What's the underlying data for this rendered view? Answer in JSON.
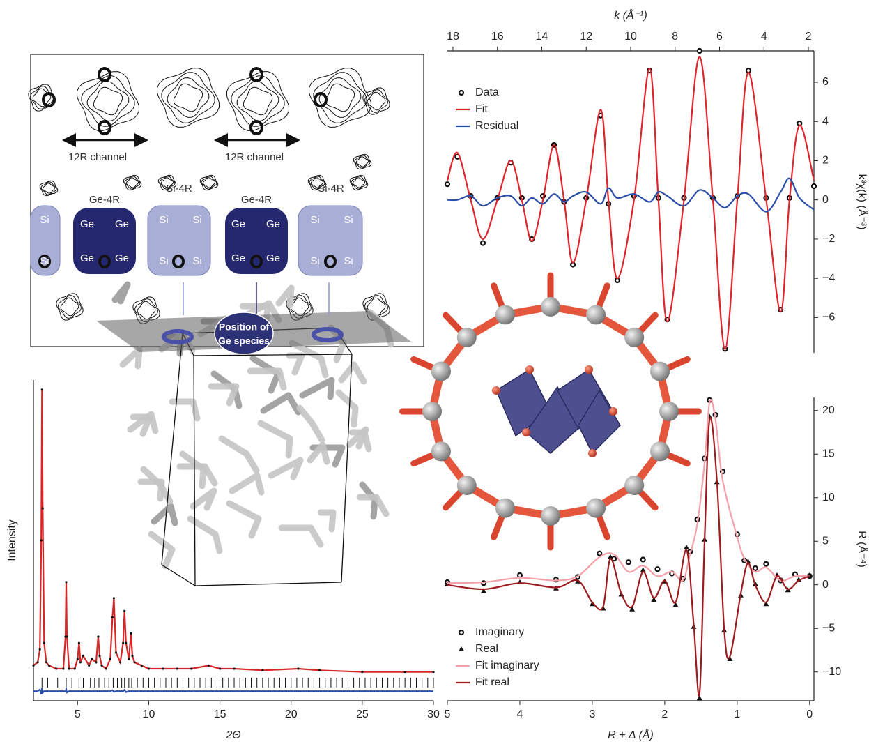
{
  "chart_data": [
    {
      "type": "line",
      "xlabel": "2Θ",
      "ylabel": "Intensity",
      "xaxis": "bottom",
      "yaxis": "left",
      "xlim": [
        1.9,
        30
      ],
      "xticks": [
        5,
        10,
        15,
        20,
        25,
        30
      ],
      "ylim": [
        0,
        100
      ],
      "x": [
        1.9,
        2.2,
        2.35,
        2.45,
        2.5,
        2.55,
        2.65,
        2.8,
        3.0,
        3.5,
        4.0,
        4.15,
        4.2,
        4.25,
        4.4,
        4.8,
        5.0,
        5.1,
        5.2,
        5.4,
        5.8,
        6.0,
        6.3,
        6.45,
        6.55,
        6.7,
        7.0,
        7.3,
        7.45,
        7.55,
        7.7,
        8.0,
        8.2,
        8.3,
        8.4,
        8.6,
        8.75,
        8.85,
        9.0,
        9.5,
        10.0,
        11.0,
        12.0,
        13.0,
        14.2,
        15,
        16,
        18,
        20.5,
        22,
        25,
        28,
        30
      ],
      "series": [
        {
          "color": "#d62728",
          "values": [
            11,
            12,
            16,
            50,
            97,
            60,
            18,
            12,
            11,
            10,
            10,
            20,
            37,
            20,
            10,
            10,
            13,
            18,
            12,
            14,
            11,
            13,
            12,
            20,
            14,
            11,
            10,
            13,
            26,
            32,
            15,
            12,
            18,
            28,
            18,
            13,
            21,
            14,
            12,
            11,
            10,
            10,
            10,
            10,
            11,
            10,
            10,
            9.5,
            10,
            9.5,
            9,
            9,
            9
          ]
        },
        {
          "color": "#111111",
          "marker": "dot",
          "values": [
            11,
            12,
            16,
            50,
            97,
            60,
            18,
            12,
            11,
            10,
            10,
            20,
            37,
            20,
            10,
            10,
            13,
            18,
            12,
            14,
            11,
            13,
            12,
            20,
            14,
            11,
            10,
            13,
            26,
            32,
            15,
            12,
            18,
            28,
            18,
            13,
            21,
            14,
            12,
            11,
            10,
            10,
            10,
            10,
            11,
            10,
            10,
            9.5,
            10,
            9.5,
            9,
            9,
            9
          ]
        },
        {
          "color": "#2b4fa8",
          "values": [
            3,
            3,
            3.5,
            2,
            4,
            2.5,
            3,
            3,
            3,
            3,
            3,
            3,
            3.6,
            2.6,
            3,
            3,
            3,
            3,
            3,
            3,
            3,
            3,
            3,
            3,
            3,
            3,
            3,
            3,
            3.3,
            2.8,
            3,
            3,
            3,
            3.4,
            2.7,
            3,
            3,
            3,
            3,
            3,
            3,
            3,
            3,
            3,
            3,
            3,
            3,
            3,
            3,
            3,
            3,
            3,
            3
          ]
        }
      ],
      "reflections": [
        2.5,
        2.9,
        3.6,
        4.2,
        4.6,
        5.1,
        5.4,
        5.9,
        6.2,
        6.5,
        6.9,
        7.2,
        7.5,
        7.8,
        8.1,
        8.3,
        8.6,
        8.8,
        9.2,
        9.6,
        10.0,
        10.4,
        10.8,
        11.2,
        11.6,
        12.0,
        12.4,
        12.8,
        13.2,
        13.6,
        14.0,
        14.4,
        14.8,
        15.2,
        15.6,
        16.0,
        16.4,
        16.8,
        17.2,
        17.6,
        18.0,
        18.4,
        18.8,
        19.2,
        19.6,
        20.0,
        20.4,
        20.8,
        21.2,
        21.6,
        22.0,
        22.4,
        22.8,
        23.2,
        23.6,
        24.0,
        24.4,
        24.8,
        25.2,
        25.6,
        26.0,
        26.4,
        26.8,
        27.2,
        27.6,
        28.0,
        28.4,
        28.8,
        29.2,
        29.6,
        30.0
      ],
      "reflection_color": "#111111"
    },
    {
      "type": "line",
      "xlabel": "k (Å⁻¹)",
      "ylabel": "k³χ(k) (Å⁻³)",
      "xaxis": "top",
      "yaxis": "right",
      "smooth": true,
      "legend": "upper left",
      "xlim": [
        18.25,
        1.75
      ],
      "xticks": [
        18,
        16,
        14,
        12,
        10,
        8,
        6,
        4,
        2
      ],
      "ylim": [
        -7.8,
        7.6
      ],
      "yticks": [
        {
          "value": -6,
          "label": "−6"
        },
        {
          "value": -4,
          "label": "−4"
        },
        {
          "value": -2,
          "label": "−2"
        },
        0,
        2,
        4,
        6
      ],
      "x": [
        18.25,
        17.8,
        17.2,
        16.65,
        16.0,
        15.4,
        14.9,
        14.45,
        13.95,
        13.45,
        13.0,
        12.6,
        12.0,
        11.35,
        11.0,
        10.6,
        9.85,
        9.15,
        8.75,
        8.35,
        7.6,
        6.9,
        6.3,
        5.75,
        5.2,
        4.7,
        3.9,
        3.25,
        2.85,
        2.4,
        1.75
      ],
      "series": [
        {
          "name": "Data",
          "color": "#111111",
          "marker": "circle",
          "values": [
            0.8,
            2.2,
            0.2,
            -2.2,
            0.1,
            1.9,
            0.1,
            -2.0,
            0.2,
            2.8,
            -0.1,
            -3.3,
            0.1,
            4.3,
            -0.2,
            -4.1,
            0.2,
            6.6,
            0.1,
            -6.1,
            0.1,
            7.6,
            0.1,
            -7.6,
            0.2,
            6.6,
            0.1,
            -5.6,
            0.1,
            3.9,
            0.7
          ]
        },
        {
          "name": "Fit",
          "color": "#e0242b",
          "values": [
            1.0,
            2.4,
            0,
            -2.0,
            0,
            2.0,
            0,
            -2.1,
            0,
            2.8,
            0,
            -3.2,
            0,
            4.6,
            0,
            -4.0,
            0,
            6.7,
            0,
            -6.2,
            0,
            7.3,
            0,
            -7.6,
            0,
            6.5,
            0,
            -5.7,
            0,
            3.8,
            1.0
          ]
        },
        {
          "name": "Residual",
          "color": "#2b4fa8",
          "values": [
            0,
            0,
            0.2,
            -0.3,
            0.1,
            0.2,
            -0.3,
            0.1,
            -0.2,
            0.3,
            -0.1,
            0.2,
            0.4,
            -0.2,
            0.6,
            0.1,
            0.3,
            -0.1,
            0.4,
            0.2,
            -0.3,
            0.5,
            0.1,
            -0.4,
            0.2,
            0.3,
            -0.6,
            0.4,
            1.1,
            0.1,
            -0.5
          ]
        }
      ]
    },
    {
      "type": "line",
      "xlabel": "R + Δ (Å)",
      "ylabel": "R (Å⁻⁴)",
      "xaxis": "bottom",
      "yaxis": "right",
      "smooth": true,
      "legend": "lower left",
      "xlim": [
        5.0,
        -0.06
      ],
      "xticks": [
        5,
        4,
        3,
        2,
        1,
        0
      ],
      "ylim": [
        -13.3,
        21.5
      ],
      "yticks": [
        {
          "value": -10,
          "label": "−10"
        },
        {
          "value": -5,
          "label": "−5"
        },
        0,
        5,
        10,
        15,
        20
      ],
      "series": [
        {
          "name": "Imaginary",
          "color": "#111111",
          "marker": "circle",
          "x": [
            5,
            4.5,
            4,
            3.5,
            3.2,
            2.9,
            2.7,
            2.5,
            2.3,
            2.1,
            1.9,
            1.75,
            1.65,
            1.55,
            1.45,
            1.38,
            1.3,
            1.2,
            1.0,
            0.9,
            0.75,
            0.6,
            0.4,
            0.2,
            0
          ],
          "values": [
            0.3,
            0.2,
            1.1,
            0.6,
            0.9,
            3.6,
            3.0,
            2.6,
            2.9,
            1.8,
            1.3,
            0.7,
            3.8,
            7.5,
            14.5,
            21.2,
            19.5,
            13,
            5.8,
            2.8,
            1.9,
            2.4,
            0.5,
            1.2,
            1.0
          ]
        },
        {
          "name": "Real",
          "color": "#111111",
          "marker": "triangle",
          "x": [
            5,
            4.5,
            4,
            3.5,
            3.2,
            3.0,
            2.85,
            2.75,
            2.6,
            2.45,
            2.3,
            2.15,
            2.0,
            1.85,
            1.7,
            1.6,
            1.52,
            1.45,
            1.38,
            1.28,
            1.18,
            1.1,
            0.95,
            0.85,
            0.75,
            0.6,
            0.45,
            0.3,
            0.15,
            0
          ],
          "values": [
            0.1,
            -0.7,
            0.3,
            -0.4,
            0.4,
            -2.2,
            -2.7,
            3.2,
            -1.1,
            -2.8,
            1.7,
            -1.7,
            0.4,
            -2.3,
            4.3,
            -4.8,
            -13.0,
            5.2,
            19.3,
            11.8,
            -5.2,
            -8.5,
            -1.2,
            2.7,
            0.1,
            -2.2,
            1.1,
            -0.6,
            0.6,
            1.1
          ]
        },
        {
          "name": "Fit imaginary",
          "color": "#f4a0a8",
          "x": [
            5,
            4.5,
            4,
            3.5,
            3.2,
            2.9,
            2.7,
            2.5,
            2.3,
            2.1,
            1.9,
            1.75,
            1.65,
            1.55,
            1.45,
            1.38,
            1.3,
            1.2,
            1.0,
            0.9,
            0.75,
            0.6,
            0.4,
            0.2,
            0
          ],
          "values": [
            0.2,
            0.3,
            0.8,
            0.5,
            1.0,
            3.2,
            3.5,
            1.5,
            2.2,
            1.0,
            1.5,
            0.5,
            3.5,
            7,
            14,
            21,
            19,
            12,
            5.5,
            3,
            1.5,
            2,
            0.5,
            1,
            1
          ]
        },
        {
          "name": "Fit real",
          "color": "#9b1b1f",
          "x": [
            5,
            4.5,
            4,
            3.5,
            3.2,
            3.0,
            2.85,
            2.75,
            2.6,
            2.45,
            2.3,
            2.15,
            2.0,
            1.85,
            1.7,
            1.6,
            1.52,
            1.45,
            1.38,
            1.28,
            1.18,
            1.1,
            0.95,
            0.85,
            0.75,
            0.6,
            0.45,
            0.3,
            0.15,
            0
          ],
          "values": [
            0,
            -0.5,
            0.2,
            -0.3,
            0.5,
            -2,
            -2.5,
            3,
            -1,
            -2.5,
            1.5,
            -1.5,
            0.5,
            -2,
            4,
            -4.5,
            -12.5,
            5,
            19,
            12,
            -5,
            -8.2,
            -1,
            2.5,
            0,
            -2,
            1,
            -0.5,
            0.5,
            1
          ]
        }
      ]
    }
  ],
  "figure_labels": {
    "channels": [
      "12R channel",
      "12R channel"
    ],
    "rings": [
      "Ge-4R",
      "Si-4R",
      "Ge-4R",
      "Si-4R"
    ],
    "atoms": [
      "Si",
      "Si",
      "Ge",
      "Ge",
      "Ge",
      "Ge",
      "Si",
      "Si",
      "Si",
      "Si",
      "Ge",
      "Ge",
      "Ge",
      "Ge",
      "Si",
      "Si",
      "Si",
      "Si"
    ],
    "position": [
      "Position of",
      "Ge species"
    ]
  }
}
